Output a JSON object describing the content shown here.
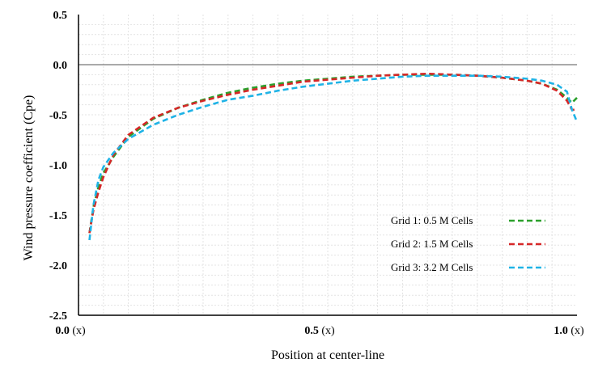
{
  "chart_data": {
    "type": "line",
    "title": "",
    "xlabel": "Position at center-line",
    "ylabel": "Wind pressure coefficient (Cpe)",
    "xlim": [
      0,
      1
    ],
    "ylim": [
      -2.5,
      0.5
    ],
    "x_ticks": [
      {
        "value": 0.0,
        "num": "0.0",
        "unit": "(x)"
      },
      {
        "value": 0.5,
        "num": "0.5",
        "unit": "(x)"
      },
      {
        "value": 1.0,
        "num": "1.0",
        "unit": "(x)"
      }
    ],
    "y_ticks": [
      {
        "value": 0.5,
        "label": "0.5"
      },
      {
        "value": 0.0,
        "label": "0.0"
      },
      {
        "value": -0.5,
        "label": "-0.5"
      },
      {
        "value": -1.0,
        "label": "-1.0"
      },
      {
        "value": -1.5,
        "label": "-1.5"
      },
      {
        "value": -2.0,
        "label": "-2.0"
      },
      {
        "value": -2.5,
        "label": "-2.5"
      }
    ],
    "grid": true,
    "legend_position": "bottom-right",
    "series": [
      {
        "name": "Grid 1: 0.5 M Cells",
        "color": "#2ca02c",
        "x": [
          0.022,
          0.03,
          0.04,
          0.05,
          0.07,
          0.1,
          0.15,
          0.2,
          0.25,
          0.3,
          0.35,
          0.4,
          0.45,
          0.5,
          0.55,
          0.6,
          0.65,
          0.7,
          0.75,
          0.8,
          0.85,
          0.9,
          0.93,
          0.96,
          0.98,
          0.99,
          1.0
        ],
        "y": [
          -1.68,
          -1.42,
          -1.22,
          -1.08,
          -0.92,
          -0.72,
          -0.54,
          -0.43,
          -0.35,
          -0.28,
          -0.23,
          -0.19,
          -0.16,
          -0.14,
          -0.12,
          -0.11,
          -0.1,
          -0.1,
          -0.1,
          -0.11,
          -0.13,
          -0.16,
          -0.19,
          -0.25,
          -0.33,
          -0.38,
          -0.33
        ]
      },
      {
        "name": "Grid 2: 1.5 M Cells",
        "color": "#d62728",
        "x": [
          0.022,
          0.03,
          0.04,
          0.05,
          0.07,
          0.1,
          0.15,
          0.2,
          0.25,
          0.3,
          0.35,
          0.4,
          0.45,
          0.5,
          0.55,
          0.6,
          0.65,
          0.7,
          0.75,
          0.8,
          0.85,
          0.9,
          0.93,
          0.96,
          0.98,
          0.99,
          1.0
        ],
        "y": [
          -1.68,
          -1.45,
          -1.27,
          -1.12,
          -0.9,
          -0.7,
          -0.53,
          -0.43,
          -0.36,
          -0.3,
          -0.25,
          -0.21,
          -0.17,
          -0.15,
          -0.13,
          -0.11,
          -0.1,
          -0.09,
          -0.1,
          -0.11,
          -0.13,
          -0.16,
          -0.19,
          -0.26,
          -0.36,
          -0.45,
          -0.45
        ]
      },
      {
        "name": "Grid 3: 3.2 M Cells",
        "color": "#1fb3e6",
        "x": [
          0.022,
          0.03,
          0.04,
          0.05,
          0.07,
          0.1,
          0.15,
          0.2,
          0.25,
          0.3,
          0.35,
          0.4,
          0.45,
          0.5,
          0.55,
          0.6,
          0.65,
          0.7,
          0.75,
          0.8,
          0.85,
          0.9,
          0.93,
          0.96,
          0.98,
          0.99,
          1.0
        ],
        "y": [
          -1.75,
          -1.4,
          -1.15,
          -1.02,
          -0.88,
          -0.74,
          -0.6,
          -0.5,
          -0.42,
          -0.35,
          -0.31,
          -0.26,
          -0.22,
          -0.19,
          -0.16,
          -0.14,
          -0.12,
          -0.11,
          -0.11,
          -0.11,
          -0.12,
          -0.14,
          -0.16,
          -0.2,
          -0.27,
          -0.45,
          -0.57
        ]
      }
    ]
  }
}
